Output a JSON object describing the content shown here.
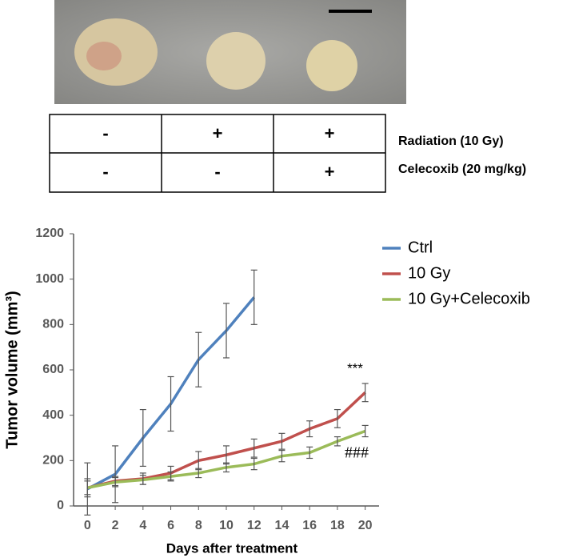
{
  "table": {
    "rows": [
      [
        "-",
        "+",
        "+"
      ],
      [
        "-",
        "-",
        "+"
      ]
    ],
    "row_labels": [
      "Radiation (10 Gy)",
      "Celecoxib (20 mg/kg)"
    ]
  },
  "chart_data": {
    "type": "line",
    "xlabel": "Days after treatment",
    "ylabel": "Tumor volume (mm³)",
    "x": [
      0,
      2,
      4,
      6,
      8,
      10,
      12,
      14,
      16,
      18,
      20
    ],
    "series": [
      {
        "name": "Ctrl",
        "color": "#4f81bd",
        "values": [
          75,
          140,
          300,
          450,
          645,
          773,
          920,
          null,
          null,
          null,
          null
        ],
        "errors": [
          115,
          125,
          125,
          120,
          120,
          120,
          120,
          null,
          null,
          null,
          null
        ]
      },
      {
        "name": "10 Gy",
        "color": "#c0504d",
        "values": [
          80,
          110,
          120,
          145,
          200,
          225,
          255,
          285,
          340,
          385,
          500
        ],
        "errors": [
          40,
          20,
          25,
          30,
          40,
          40,
          40,
          35,
          35,
          40,
          40
        ]
      },
      {
        "name": "10 Gy+Celecoxib",
        "color": "#9bbb59",
        "values": [
          80,
          105,
          115,
          130,
          145,
          170,
          185,
          220,
          235,
          285,
          330
        ],
        "errors": [
          30,
          20,
          20,
          20,
          20,
          20,
          25,
          25,
          25,
          20,
          25
        ]
      }
    ],
    "annotations": [
      "***",
      "###"
    ],
    "xlim": [
      -1,
      21
    ],
    "xticks": [
      0,
      2,
      4,
      6,
      8,
      10,
      12,
      14,
      16,
      18,
      20
    ],
    "ylim": [
      0,
      1200
    ],
    "yticks": [
      0,
      200,
      400,
      600,
      800,
      1000,
      1200
    ],
    "grid": false,
    "legend": "right"
  }
}
